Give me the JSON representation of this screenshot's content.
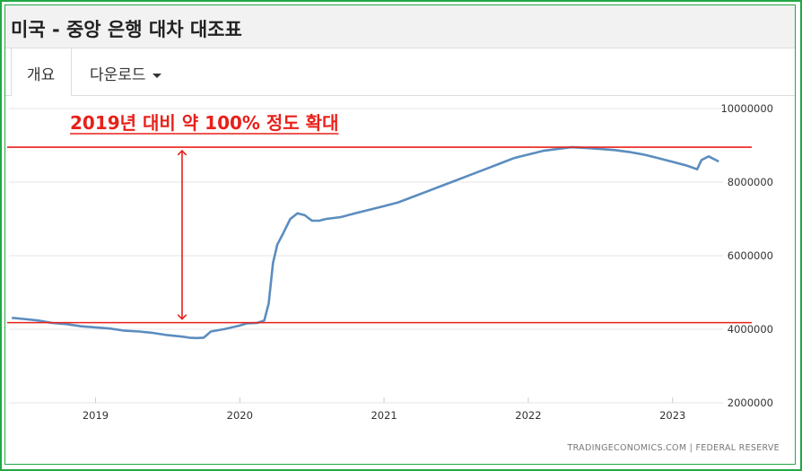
{
  "title": "미국 - 중앙 은행 대차 대조표",
  "tabs": {
    "overview_label": "개요",
    "download_label": "다운로드"
  },
  "source": "TRADINGECONOMICS.COM  |  FEDERAL RESERVE",
  "colors": {
    "line": "#5b8dbf",
    "annotation": "#e8201a",
    "frame": "#22a845"
  },
  "icons": {
    "dropdown": "caret-down-icon",
    "arrow": "double-headed-arrow-icon"
  },
  "annotation": {
    "text": "2019년 대비 약 100% 정도 확대",
    "upper_level": 8950000,
    "lower_level": 4180000
  },
  "chart_data": {
    "type": "line",
    "title": "",
    "xlabel": "",
    "ylabel": "",
    "xlim": [
      2018.4,
      2023.35
    ],
    "ylim": [
      2000000,
      10000000
    ],
    "y_ticks": [
      2000000,
      4000000,
      6000000,
      8000000,
      10000000
    ],
    "y_tick_labels": [
      "2000000",
      "4000000",
      "6000000",
      "8000000",
      "10000000"
    ],
    "x_ticks": [
      2019,
      2020,
      2021,
      2022,
      2023
    ],
    "x_tick_labels": [
      "2019",
      "2020",
      "2021",
      "2022",
      "2023"
    ],
    "y_axis_position": "right",
    "grid": "horizontal",
    "series": [
      {
        "x": [
          2018.42,
          2018.5,
          2018.6,
          2018.7,
          2018.8,
          2018.9,
          2019.0,
          2019.1,
          2019.2,
          2019.3,
          2019.4,
          2019.5,
          2019.6,
          2019.65,
          2019.7,
          2019.75,
          2019.8,
          2019.9,
          2020.0,
          2020.05,
          2020.12,
          2020.17,
          2020.2,
          2020.23,
          2020.26,
          2020.3,
          2020.35,
          2020.4,
          2020.45,
          2020.5,
          2020.55,
          2020.6,
          2020.7,
          2020.8,
          2020.9,
          2021.0,
          2021.1,
          2021.2,
          2021.3,
          2021.4,
          2021.5,
          2021.6,
          2021.7,
          2021.8,
          2021.9,
          2022.0,
          2022.1,
          2022.2,
          2022.3,
          2022.4,
          2022.5,
          2022.6,
          2022.7,
          2022.8,
          2022.9,
          2023.0,
          2023.1,
          2023.17,
          2023.2,
          2023.25,
          2023.32
        ],
        "values": [
          4310000,
          4280000,
          4240000,
          4170000,
          4140000,
          4080000,
          4050000,
          4020000,
          3960000,
          3940000,
          3900000,
          3840000,
          3800000,
          3770000,
          3760000,
          3770000,
          3940000,
          4010000,
          4100000,
          4160000,
          4170000,
          4240000,
          4700000,
          5800000,
          6300000,
          6600000,
          7000000,
          7150000,
          7100000,
          6950000,
          6950000,
          7000000,
          7050000,
          7150000,
          7250000,
          7350000,
          7450000,
          7600000,
          7750000,
          7900000,
          8050000,
          8200000,
          8350000,
          8500000,
          8650000,
          8750000,
          8850000,
          8900000,
          8950000,
          8930000,
          8900000,
          8870000,
          8820000,
          8750000,
          8650000,
          8550000,
          8450000,
          8350000,
          8600000,
          8700000,
          8560000
        ]
      }
    ]
  }
}
